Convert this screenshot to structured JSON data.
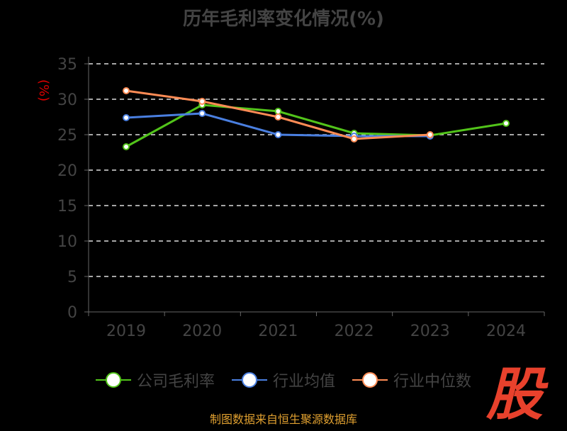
{
  "chart_data": {
    "type": "line",
    "title": "历年毛利率变化情况(%)",
    "ylabel": "(%)",
    "xlabel": "",
    "categories": [
      "2019",
      "2020",
      "2021",
      "2022",
      "2023",
      "2024"
    ],
    "ylim": [
      0,
      35
    ],
    "yticks": [
      0,
      5,
      10,
      15,
      20,
      25,
      30,
      35
    ],
    "grid": true,
    "legend_position": "bottom",
    "series": [
      {
        "name": "公司毛利率",
        "color": "#52c41a",
        "values": [
          23.3,
          29.2,
          28.3,
          25.2,
          24.9,
          26.6
        ]
      },
      {
        "name": "行业均值",
        "color": "#4a7fe0",
        "values": [
          27.4,
          28.0,
          25.0,
          24.8,
          24.8,
          null
        ]
      },
      {
        "name": "行业中位数",
        "color": "#ff8c55",
        "values": [
          31.2,
          29.7,
          27.5,
          24.4,
          25.0,
          null
        ]
      }
    ]
  },
  "source": "制图数据来自恒生聚源数据库",
  "logo": "股"
}
